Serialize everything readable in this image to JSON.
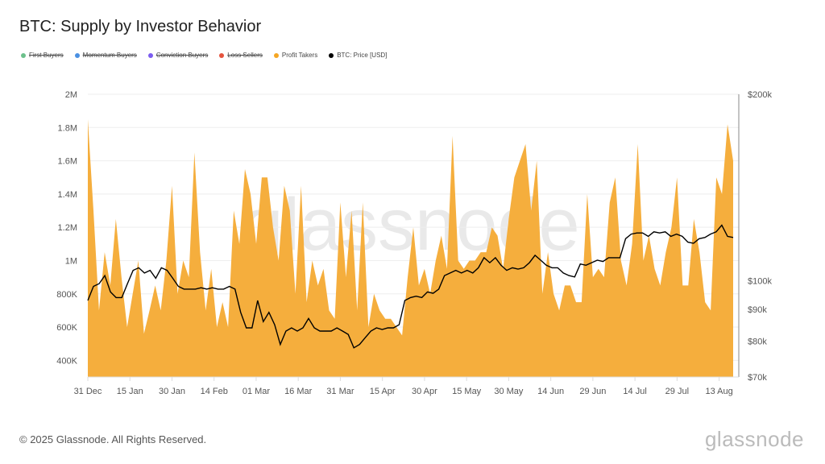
{
  "title": "BTC: Supply by Investor Behavior",
  "legend": [
    {
      "label": "First Buyers",
      "color": "#6cc08b",
      "hidden": true
    },
    {
      "label": "Momentum Buyers",
      "color": "#4a90e2",
      "hidden": true
    },
    {
      "label": "Conviction Buyers",
      "color": "#7b5cf0",
      "hidden": true
    },
    {
      "label": "Loss Sellers",
      "color": "#e5533d",
      "hidden": true
    },
    {
      "label": "Profit Takers",
      "color": "#f5a623",
      "hidden": false
    },
    {
      "label": "BTC: Price [USD]",
      "color": "#000000",
      "hidden": false
    }
  ],
  "footer": "© 2025 Glassnode. All Rights Reserved.",
  "brand": "glassnode",
  "watermark": "glassnode",
  "chart_data": {
    "type": "area",
    "title": "BTC: Supply by Investor Behavior",
    "x_start": "2024-12-31",
    "x_end": "2025-08-17",
    "x_ticks": [
      "31 Dec",
      "15 Jan",
      "30 Jan",
      "14 Feb",
      "01 Mar",
      "16 Mar",
      "31 Mar",
      "15 Apr",
      "30 Apr",
      "15 May",
      "30 May",
      "14 Jun",
      "29 Jun",
      "14 Jul",
      "29 Jul",
      "13 Aug"
    ],
    "y_left": {
      "ticks": [
        "400K",
        "600K",
        "800K",
        "1M",
        "1.2M",
        "1.4M",
        "1.6M",
        "1.8M",
        "2M"
      ],
      "tick_values": [
        400,
        600,
        800,
        1000,
        1200,
        1400,
        1600,
        1800,
        2000
      ],
      "range": [
        300,
        2000
      ],
      "unit": "K BTC"
    },
    "y_right": {
      "ticks": [
        "$70k",
        "$80k",
        "$90k",
        "$100k",
        "$200k"
      ],
      "tick_values": [
        70,
        80,
        90,
        100,
        200
      ],
      "range": [
        70,
        200
      ],
      "scale": "log",
      "unit": "k USD"
    },
    "series": [
      {
        "name": "Profit Takers",
        "color": "#f5ae3d",
        "type": "area",
        "values": [
          1850,
          1300,
          700,
          1050,
          850,
          1250,
          900,
          600,
          800,
          1000,
          560,
          700,
          850,
          700,
          1000,
          1450,
          800,
          1000,
          900,
          1650,
          1050,
          700,
          950,
          600,
          750,
          600,
          1300,
          1100,
          1550,
          1400,
          1100,
          1500,
          1500,
          1200,
          1000,
          1450,
          1300,
          800,
          1450,
          750,
          1000,
          850,
          950,
          700,
          650,
          1350,
          900,
          1300,
          700,
          1350,
          600,
          800,
          700,
          650,
          650,
          600,
          550,
          900,
          1200,
          850,
          950,
          800,
          1000,
          1150,
          950,
          1750,
          1000,
          950,
          1000,
          1000,
          1050,
          1050,
          1200,
          1150,
          950,
          1250,
          1500,
          1600,
          1700,
          1300,
          1600,
          800,
          1050,
          800,
          700,
          850,
          850,
          750,
          750,
          1400,
          900,
          950,
          900,
          1350,
          1500,
          1000,
          850,
          1100,
          1700,
          1000,
          1150,
          950,
          850,
          1050,
          1200,
          1500,
          850,
          850,
          1250,
          1050,
          750,
          700,
          1500,
          1400,
          1820,
          1600
        ]
      },
      {
        "name": "BTC: Price [USD]",
        "color": "#000000",
        "type": "line",
        "values": [
          93,
          98,
          99,
          102,
          96,
          94,
          94,
          99,
          104,
          105,
          103,
          104,
          101,
          105,
          104,
          101,
          98,
          97,
          97,
          97,
          97.5,
          97,
          97.5,
          97,
          97,
          98,
          97,
          89,
          84,
          84,
          93,
          86,
          89,
          85,
          79,
          83,
          84,
          83,
          84,
          87,
          84,
          83,
          83,
          83,
          84,
          83,
          82,
          78,
          79,
          81,
          83,
          84,
          83.5,
          84,
          84,
          85,
          93,
          94,
          94.5,
          94,
          96,
          95.5,
          97,
          102,
          103,
          104,
          103,
          104,
          103,
          105,
          109,
          107,
          109,
          106,
          104,
          105,
          104.5,
          105,
          107,
          110,
          108,
          106,
          105,
          105,
          103,
          102,
          101.5,
          106.5,
          106,
          107,
          108,
          107.5,
          109,
          109,
          109,
          117,
          119,
          119.5,
          119.5,
          118,
          120,
          119.5,
          120,
          118,
          119,
          118,
          115.5,
          115,
          117,
          117.5,
          119,
          120,
          123,
          118,
          117.5
        ]
      }
    ],
    "grid": true,
    "legend_position": "top-left"
  }
}
